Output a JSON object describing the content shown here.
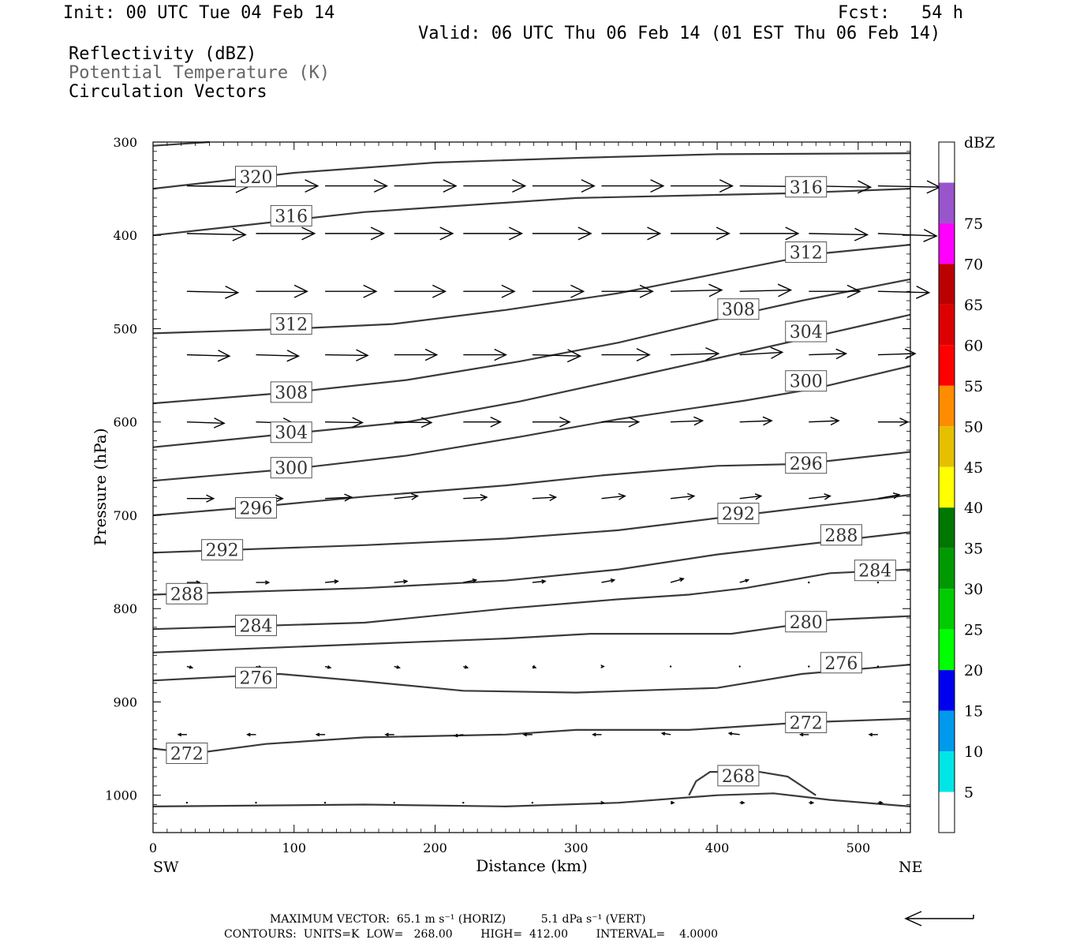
{
  "header": {
    "init": "Init: 00 UTC Tue 04 Feb 14",
    "fcst": "Fcst:   54 h",
    "valid": "Valid: 06 UTC Thu 06 Feb 14 (01 EST Thu 06 Feb 14)",
    "field1": "Reflectivity (dBZ)",
    "field2": "Potential Temperature (K)",
    "field3": "Circulation Vectors"
  },
  "footer": {
    "max_vector": "MAXIMUM VECTOR:  65.1 m s⁻¹ (HORIZ)          5.1 dPa s⁻¹ (VERT)",
    "contours": "CONTOURS:  UNITS=K  LOW=   268.00        HIGH=  412.00        INTERVAL=    4.0000"
  },
  "colors": {
    "contour": "#3a3a3a",
    "vector": "#000000",
    "axis": "#000000"
  },
  "chart_data": {
    "type": "cross-section",
    "xlabel": "Distance (km)",
    "ylabel": "Pressure (hPa)",
    "xlim": [
      0,
      537
    ],
    "ylim": [
      1040,
      300
    ],
    "xticks": [
      "0",
      "100",
      "200",
      "300",
      "400",
      "500"
    ],
    "yticks": [
      "300",
      "400",
      "500",
      "600",
      "700",
      "800",
      "900",
      "1000"
    ],
    "xtick_values": [
      0,
      100,
      200,
      300,
      400,
      500
    ],
    "ytick_values": [
      300,
      400,
      500,
      600,
      700,
      800,
      900,
      1000
    ],
    "left_end": "SW",
    "right_end": "NE",
    "colorbar": {
      "units": "dBZ",
      "labels": [
        "5",
        "10",
        "15",
        "20",
        "25",
        "30",
        "35",
        "40",
        "45",
        "50",
        "55",
        "60",
        "65",
        "70",
        "75"
      ],
      "colors": [
        "#ffffff",
        "#00e5e5",
        "#0099ee",
        "#0000ee",
        "#00ff00",
        "#00cc00",
        "#009900",
        "#007700",
        "#ffff00",
        "#e6c000",
        "#ff8c00",
        "#ff0000",
        "#dd0000",
        "#bb0000",
        "#ff00ff",
        "#9955cc",
        "#ffffff"
      ]
    },
    "contour_interval": 4,
    "contours": [
      {
        "label": "320",
        "points": [
          [
            0,
            304
          ],
          [
            40,
            300
          ]
        ]
      },
      {
        "label": "320",
        "points": [
          [
            0,
            350
          ],
          [
            100,
            333
          ],
          [
            200,
            322
          ],
          [
            300,
            317
          ],
          [
            400,
            313
          ],
          [
            537,
            312
          ]
        ]
      },
      {
        "label": "316",
        "points": [
          [
            0,
            400
          ],
          [
            150,
            375
          ],
          [
            300,
            360
          ],
          [
            450,
            355
          ],
          [
            537,
            350
          ]
        ]
      },
      {
        "label": "312",
        "points": [
          [
            0,
            505
          ],
          [
            100,
            500
          ],
          [
            170,
            495
          ],
          [
            250,
            480
          ],
          [
            330,
            462
          ],
          [
            420,
            435
          ],
          [
            470,
            420
          ],
          [
            537,
            410
          ]
        ]
      },
      {
        "label": "308",
        "points": [
          [
            0,
            580
          ],
          [
            100,
            568
          ],
          [
            180,
            555
          ],
          [
            260,
            535
          ],
          [
            330,
            515
          ],
          [
            400,
            490
          ],
          [
            460,
            470
          ],
          [
            537,
            447
          ]
        ]
      },
      {
        "label": "304",
        "points": [
          [
            0,
            627
          ],
          [
            100,
            612
          ],
          [
            180,
            600
          ],
          [
            260,
            578
          ],
          [
            330,
            555
          ],
          [
            420,
            525
          ],
          [
            470,
            508
          ],
          [
            537,
            485
          ]
        ]
      },
      {
        "label": "300",
        "points": [
          [
            0,
            663
          ],
          [
            100,
            650
          ],
          [
            180,
            636
          ],
          [
            260,
            616
          ],
          [
            330,
            597
          ],
          [
            420,
            577
          ],
          [
            470,
            564
          ],
          [
            537,
            540
          ]
        ]
      },
      {
        "label": "296",
        "points": [
          [
            0,
            700
          ],
          [
            80,
            690
          ],
          [
            150,
            680
          ],
          [
            250,
            668
          ],
          [
            320,
            657
          ],
          [
            400,
            647
          ],
          [
            460,
            645
          ],
          [
            537,
            632
          ]
        ]
      },
      {
        "label": "292",
        "points": [
          [
            0,
            740
          ],
          [
            150,
            732
          ],
          [
            250,
            725
          ],
          [
            330,
            716
          ],
          [
            400,
            703
          ],
          [
            500,
            685
          ],
          [
            537,
            678
          ]
        ]
      },
      {
        "label": "288",
        "points": [
          [
            0,
            785
          ],
          [
            150,
            778
          ],
          [
            250,
            770
          ],
          [
            330,
            758
          ],
          [
            400,
            742
          ],
          [
            480,
            728
          ],
          [
            537,
            718
          ]
        ]
      },
      {
        "label": "284",
        "points": [
          [
            0,
            822
          ],
          [
            150,
            815
          ],
          [
            250,
            800
          ],
          [
            330,
            790
          ],
          [
            380,
            785
          ],
          [
            420,
            778
          ],
          [
            480,
            762
          ],
          [
            537,
            758
          ]
        ]
      },
      {
        "label": "280",
        "points": [
          [
            0,
            847
          ],
          [
            150,
            838
          ],
          [
            250,
            832
          ],
          [
            310,
            827
          ],
          [
            360,
            827
          ],
          [
            410,
            827
          ],
          [
            480,
            812
          ],
          [
            537,
            808
          ]
        ]
      },
      {
        "label": "276",
        "points": [
          [
            0,
            877
          ],
          [
            90,
            870
          ],
          [
            150,
            878
          ],
          [
            220,
            888
          ],
          [
            300,
            890
          ],
          [
            400,
            885
          ],
          [
            460,
            870
          ],
          [
            537,
            860
          ]
        ]
      },
      {
        "label": "272",
        "points": [
          [
            0,
            950
          ],
          [
            30,
            955
          ],
          [
            80,
            945
          ],
          [
            150,
            938
          ],
          [
            250,
            935
          ],
          [
            300,
            930
          ],
          [
            380,
            930
          ],
          [
            460,
            922
          ],
          [
            537,
            918
          ]
        ]
      },
      {
        "label": "268",
        "points": [
          [
            380,
            1000
          ],
          [
            385,
            985
          ],
          [
            395,
            975
          ],
          [
            430,
            975
          ],
          [
            450,
            980
          ],
          [
            470,
            1000
          ]
        ]
      },
      {
        "label": "268",
        "points": [
          [
            0,
            1012
          ],
          [
            150,
            1010
          ],
          [
            250,
            1012
          ],
          [
            330,
            1008
          ],
          [
            400,
            1000
          ],
          [
            440,
            998
          ],
          [
            480,
            1005
          ],
          [
            537,
            1012
          ]
        ]
      }
    ],
    "contour_labels": [
      {
        "text": "320",
        "x": 73,
        "p": 337
      },
      {
        "text": "316",
        "x": 98,
        "p": 379
      },
      {
        "text": "316",
        "x": 463,
        "p": 348
      },
      {
        "text": "312",
        "x": 463,
        "p": 418
      },
      {
        "text": "312",
        "x": 98,
        "p": 495
      },
      {
        "text": "308",
        "x": 415,
        "p": 479
      },
      {
        "text": "308",
        "x": 98,
        "p": 568
      },
      {
        "text": "304",
        "x": 463,
        "p": 503
      },
      {
        "text": "304",
        "x": 98,
        "p": 611
      },
      {
        "text": "300",
        "x": 463,
        "p": 556
      },
      {
        "text": "300",
        "x": 98,
        "p": 649
      },
      {
        "text": "296",
        "x": 463,
        "p": 644
      },
      {
        "text": "296",
        "x": 73,
        "p": 692
      },
      {
        "text": "292",
        "x": 415,
        "p": 698
      },
      {
        "text": "292",
        "x": 49,
        "p": 737
      },
      {
        "text": "288",
        "x": 488,
        "p": 721
      },
      {
        "text": "288",
        "x": 24,
        "p": 784
      },
      {
        "text": "284",
        "x": 512,
        "p": 759
      },
      {
        "text": "284",
        "x": 73,
        "p": 818
      },
      {
        "text": "280",
        "x": 463,
        "p": 814
      },
      {
        "text": "276",
        "x": 488,
        "p": 858
      },
      {
        "text": "276",
        "x": 73,
        "p": 874
      },
      {
        "text": "272",
        "x": 463,
        "p": 922
      },
      {
        "text": "272",
        "x": 24,
        "p": 955
      },
      {
        "text": "268",
        "x": 415,
        "p": 979
      }
    ],
    "vector_rows": [
      {
        "p": 347,
        "us": [
          58,
          58,
          58,
          58,
          58,
          58,
          58,
          58,
          58,
          58,
          58
        ],
        "ws": [
          -0.5,
          0,
          0,
          0,
          0,
          0,
          0,
          0,
          -0.5,
          -1,
          -1
        ]
      },
      {
        "p": 398,
        "us": [
          55,
          55,
          55,
          55,
          55,
          55,
          55,
          55,
          55,
          55,
          55
        ],
        "ws": [
          -1,
          0,
          0,
          0,
          0,
          0,
          0,
          0,
          0,
          -1,
          -2
        ]
      },
      {
        "p": 460,
        "us": [
          48,
          48,
          48,
          48,
          48,
          48,
          48,
          48,
          48,
          48,
          48
        ],
        "ws": [
          -1,
          0,
          0,
          0,
          0,
          0,
          0,
          1,
          1,
          0,
          -1
        ]
      },
      {
        "p": 528,
        "us": [
          40,
          40,
          40,
          40,
          40,
          45,
          45,
          45,
          40,
          35,
          35
        ],
        "ws": [
          -1,
          -1,
          -0.5,
          0,
          0,
          -1,
          0,
          1,
          2,
          1,
          1
        ]
      },
      {
        "p": 600,
        "us": [
          35,
          35,
          35,
          35,
          35,
          35,
          35,
          30,
          30,
          28,
          28
        ],
        "ws": [
          -1,
          -1,
          -0.5,
          -0.5,
          0,
          0,
          0,
          1,
          1,
          1,
          0
        ]
      },
      {
        "p": 682,
        "us": [
          25,
          25,
          25,
          22,
          22,
          22,
          22,
          22,
          20,
          20,
          20
        ],
        "ws": [
          0,
          0,
          1,
          2,
          1,
          1,
          2,
          2,
          2,
          2,
          3
        ]
      },
      {
        "p": 772,
        "us": [
          12,
          12,
          12,
          12,
          12,
          12,
          12,
          12,
          8,
          0,
          0
        ],
        "ws": [
          0,
          0,
          1,
          1,
          2,
          1,
          2,
          3,
          2,
          0,
          0
        ]
      },
      {
        "p": 862,
        "us": [
          5,
          5,
          5,
          5,
          4,
          3,
          2,
          1,
          1,
          1,
          1
        ],
        "ws": [
          -1,
          -1,
          -1,
          -1,
          -1,
          -1,
          0,
          0,
          0,
          0,
          0
        ]
      },
      {
        "p": 935,
        "us": [
          -8,
          -8,
          -8,
          -8,
          -8,
          -8,
          -8,
          -8,
          -10,
          -8,
          -8
        ],
        "ws": [
          0,
          0,
          0,
          0,
          -1,
          0,
          0,
          1,
          1,
          0,
          0
        ]
      },
      {
        "p": 1008,
        "us": [
          0,
          0,
          1,
          1,
          1,
          1,
          2,
          3,
          4,
          4,
          4
        ],
        "ws": [
          0,
          0,
          0,
          0,
          0,
          0,
          0,
          0,
          0,
          0,
          0
        ]
      }
    ],
    "vector_x": [
      24,
      73,
      122,
      171,
      220,
      269,
      318,
      367,
      416,
      465,
      514
    ]
  }
}
